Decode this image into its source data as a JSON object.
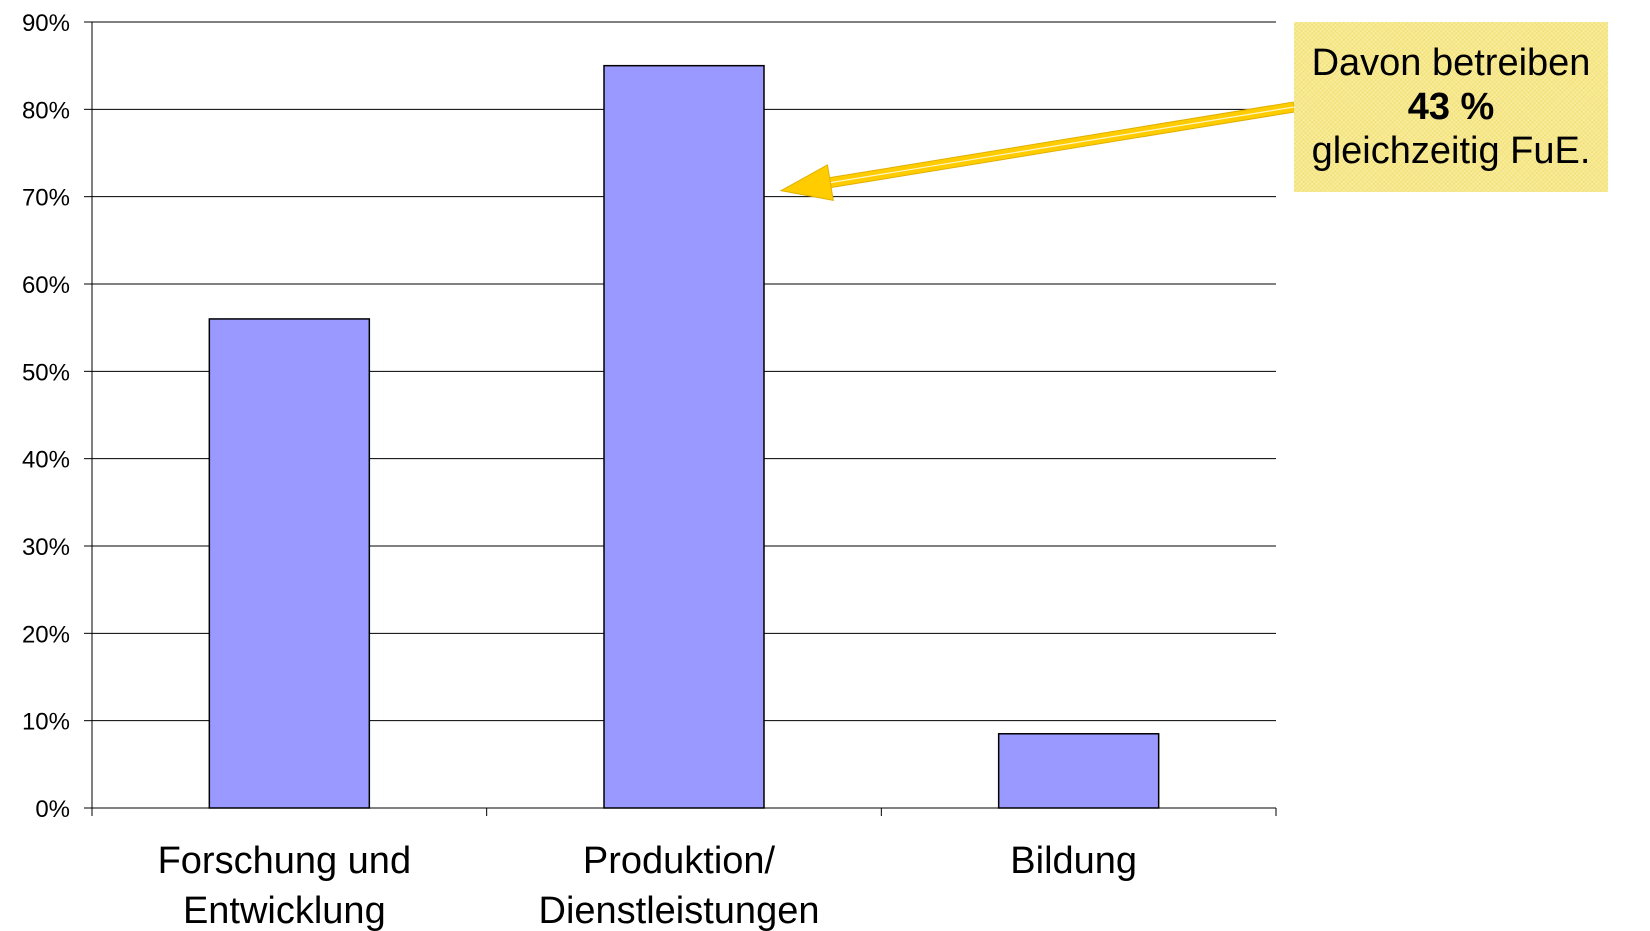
{
  "chart_data": {
    "type": "bar",
    "categories": [
      [
        "Forschung und",
        "Entwicklung"
      ],
      [
        "Produktion/",
        "Dienstleistungen"
      ],
      [
        "Bildung"
      ]
    ],
    "values": [
      56,
      85,
      8.5
    ],
    "title": "",
    "xlabel": "",
    "ylabel": "",
    "ylim": [
      0,
      90
    ],
    "yticks": [
      "0%",
      "10%",
      "20%",
      "30%",
      "40%",
      "50%",
      "60%",
      "70%",
      "80%",
      "90%"
    ],
    "grid": true,
    "legend": "none",
    "colors": {
      "bar_fill": "#9999ff",
      "bar_stroke": "#000000",
      "grid": "#000000",
      "arrow": "#ffcc00",
      "callout_bg": "#f7e88a"
    },
    "annotation": {
      "line1": "Davon betreiben",
      "line2": "43 %",
      "line3": "gleichzeitig FuE.",
      "points_to_category": 1
    }
  }
}
